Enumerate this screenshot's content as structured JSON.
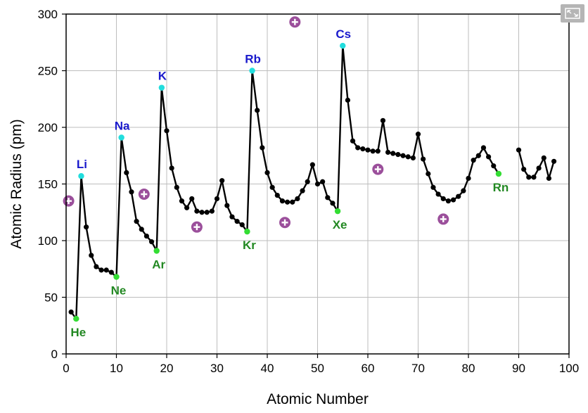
{
  "chart_data": {
    "type": "scatter",
    "xlabel": "Atomic Number",
    "ylabel": "Atomic Radius (pm)",
    "xlim": [
      0,
      100
    ],
    "ylim": [
      0,
      300
    ],
    "xticks": [
      0,
      10,
      20,
      30,
      40,
      50,
      60,
      70,
      80,
      90,
      100
    ],
    "yticks": [
      0,
      50,
      100,
      150,
      200,
      250,
      300
    ],
    "grid": true,
    "colors": {
      "line": "#000000",
      "alkali": "#22dddd",
      "noble": "#33dd33",
      "alkali_label": "#1a1acc",
      "noble_label": "#228822",
      "plus_marker": "#9b4f9b"
    },
    "series": [
      {
        "x": [
          1,
          2,
          3,
          4,
          5,
          6,
          7,
          8,
          9,
          10,
          11,
          12,
          13,
          14,
          15,
          16,
          17,
          18,
          19,
          20,
          21,
          22,
          23,
          24,
          25,
          26,
          27,
          28,
          29,
          30,
          31,
          32,
          33,
          34,
          35,
          36,
          37,
          38,
          39,
          40,
          41,
          42,
          43,
          44,
          45,
          46,
          47,
          48,
          49,
          50,
          51,
          52,
          53,
          54,
          55,
          56,
          57,
          58,
          59,
          60,
          61,
          62,
          63,
          64,
          65,
          66,
          67,
          68,
          69,
          70,
          71,
          72,
          73,
          74,
          75,
          76,
          77,
          78,
          79,
          80,
          81,
          82,
          83,
          84,
          85,
          86
        ],
        "y": [
          37,
          31,
          157,
          112,
          87,
          77,
          74,
          74,
          72,
          68,
          191,
          160,
          143,
          117,
          110,
          104,
          99,
          91,
          235,
          197,
          164,
          147,
          135,
          129,
          137,
          126,
          125,
          125,
          126,
          137,
          153,
          131,
          121,
          117,
          114,
          108,
          250,
          215,
          182,
          160,
          147,
          140,
          135,
          134,
          134,
          137,
          144,
          152,
          167,
          150,
          152,
          138,
          133,
          126,
          272,
          224,
          188,
          182,
          181,
          180,
          179,
          179,
          206,
          178,
          177,
          176,
          175,
          174,
          173,
          194,
          172,
          159,
          147,
          141,
          137,
          135,
          136,
          139,
          144,
          155,
          171,
          175,
          182,
          174,
          166,
          159
        ]
      },
      {
        "x": [
          90,
          91,
          92,
          93,
          94,
          95,
          96,
          97
        ],
        "y": [
          180,
          163,
          156,
          156,
          164,
          173,
          155,
          170
        ]
      }
    ],
    "annotations": [
      {
        "text": "He",
        "x": 2,
        "y": 31,
        "group": "noble"
      },
      {
        "text": "Ne",
        "x": 10,
        "y": 68,
        "group": "noble"
      },
      {
        "text": "Ar",
        "x": 18,
        "y": 91,
        "group": "noble"
      },
      {
        "text": "Kr",
        "x": 36,
        "y": 108,
        "group": "noble"
      },
      {
        "text": "Xe",
        "x": 54,
        "y": 126,
        "group": "noble"
      },
      {
        "text": "Rn",
        "x": 86,
        "y": 159,
        "group": "noble"
      },
      {
        "text": "Li",
        "x": 3,
        "y": 157,
        "group": "alkali"
      },
      {
        "text": "Na",
        "x": 11,
        "y": 191,
        "group": "alkali"
      },
      {
        "text": "K",
        "x": 19,
        "y": 235,
        "group": "alkali"
      },
      {
        "text": "Rb",
        "x": 37,
        "y": 250,
        "group": "alkali"
      },
      {
        "text": "Cs",
        "x": 55,
        "y": 272,
        "group": "alkali"
      }
    ],
    "plus_markers": [
      {
        "x": 0.5,
        "y": 135
      },
      {
        "x": 15.5,
        "y": 141
      },
      {
        "x": 26,
        "y": 112
      },
      {
        "x": 43.5,
        "y": 116
      },
      {
        "x": 45.5,
        "y": 293
      },
      {
        "x": 62,
        "y": 163
      },
      {
        "x": 75,
        "y": 119
      }
    ]
  },
  "toolbar": {
    "expand_icon": "expand-icon"
  }
}
